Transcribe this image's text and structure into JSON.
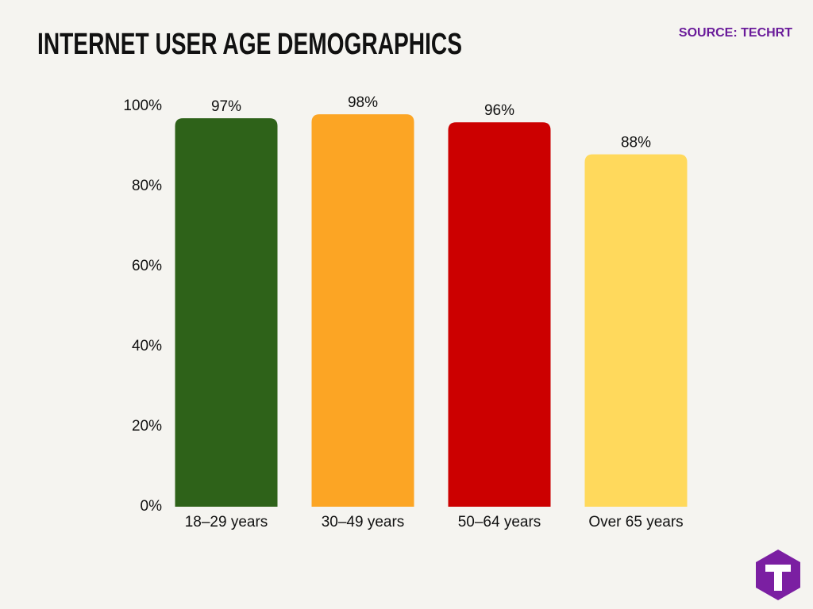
{
  "chart_data": {
    "type": "bar",
    "title": "INTERNET USER AGE DEMOGRAPHICS",
    "source": "SOURCE: TECHRT",
    "categories": [
      "18–29 years",
      "30–49 years",
      "50–64 years",
      "Over 65 years"
    ],
    "values": [
      97,
      98,
      96,
      88
    ],
    "value_labels": [
      "97%",
      "98%",
      "96%",
      "88%"
    ],
    "colors": [
      "#2e6219",
      "#fca524",
      "#cc0000",
      "#ffd95c"
    ],
    "ylim": [
      0,
      100
    ],
    "yticks": [
      {
        "value": 0,
        "label": "0%"
      },
      {
        "value": 20,
        "label": "20%"
      },
      {
        "value": 40,
        "label": "40%"
      },
      {
        "value": 60,
        "label": "60%"
      },
      {
        "value": 80,
        "label": "80%"
      },
      {
        "value": 100,
        "label": "100%"
      }
    ],
    "grid": false
  }
}
